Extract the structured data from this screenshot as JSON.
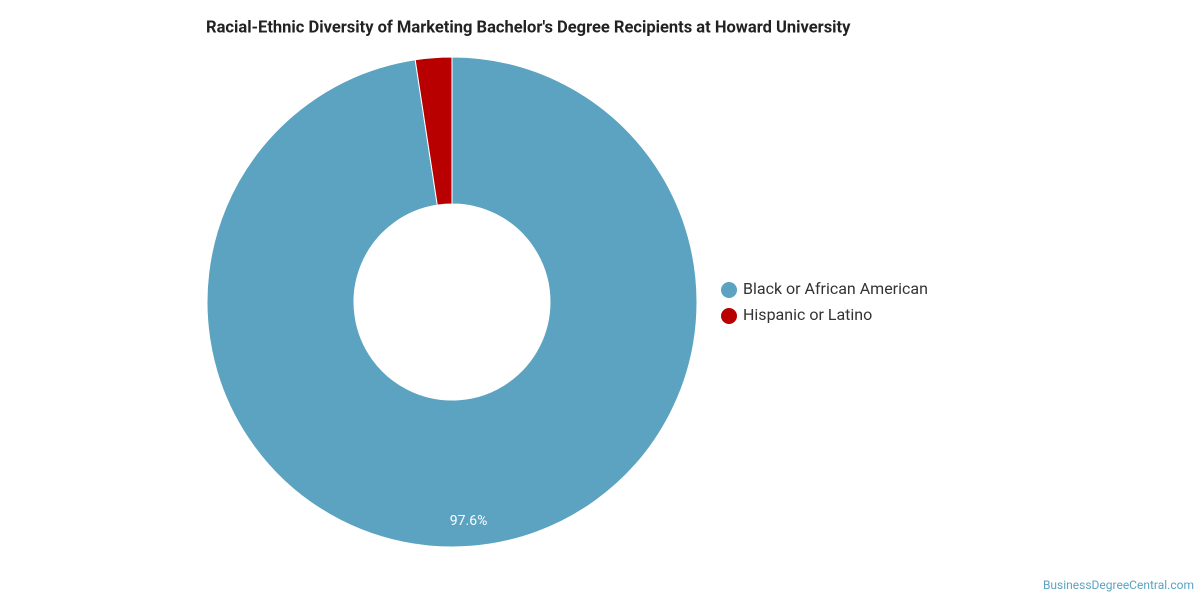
{
  "chart_data": {
    "type": "donut",
    "title": "Racial-Ethnic Diversity of Marketing Bachelor's Degree Recipients at Howard University",
    "categories": [
      "Black or African American",
      "Hispanic or Latino"
    ],
    "values": [
      97.6,
      2.4
    ],
    "value_labels": [
      "97.6%",
      null
    ],
    "colors": [
      "#5ba3c0",
      "#b80000"
    ],
    "legend": "right",
    "source": "BusinessDegreeCentral.com"
  }
}
